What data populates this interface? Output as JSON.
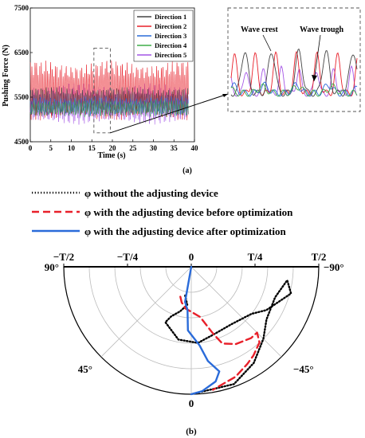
{
  "chart_data": [
    {
      "panel": "(a)",
      "type": "line",
      "xlabel": "Time (s)",
      "ylabel": "Pushing Force (N)",
      "xlim": [
        0,
        40
      ],
      "ylim": [
        4500,
        7500
      ],
      "xticks": [
        0,
        5,
        10,
        15,
        20,
        25,
        30,
        35,
        40
      ],
      "yticks": [
        4500,
        5500,
        6500,
        7500
      ],
      "data_end_time": 38.5,
      "legend_position": "top-right",
      "series": [
        {
          "name": "Direction 1",
          "color": "#444444",
          "mean": 5400,
          "amplitude": 300
        },
        {
          "name": "Direction 2",
          "color": "#e8202a",
          "mean": 5650,
          "amplitude": 620
        },
        {
          "name": "Direction 3",
          "color": "#2a6bd9",
          "mean": 5300,
          "amplitude": 200
        },
        {
          "name": "Direction 4",
          "color": "#3fae49",
          "mean": 5250,
          "amplitude": 180
        },
        {
          "name": "Direction 5",
          "color": "#a455e6",
          "mean": 5350,
          "amplitude": 420
        }
      ],
      "zoom_window": {
        "x_range": [
          15.5,
          19.5
        ],
        "y_range": [
          4700,
          6600
        ]
      },
      "inset": {
        "annotations": [
          "Wave crest",
          "Wave trough"
        ]
      }
    },
    {
      "panel": "(b)",
      "type": "line",
      "projection": "polar-half",
      "angle_ticks_top": [
        "−T/2",
        "−T/4",
        "0",
        "T/4",
        "T/2"
      ],
      "angle_ticks_degrees": [
        "90°",
        "45°",
        "−45°",
        "−90°"
      ],
      "bottom_label": "0",
      "rings": 5,
      "legend_position": "top",
      "series": [
        {
          "name": "φ without the adjusting device",
          "color": "#000000",
          "style": "dotted",
          "points": [
            [
              -12,
              0.23
            ],
            [
              -6,
              0.3
            ],
            [
              -14,
              0.36
            ],
            [
              -22,
              0.42
            ],
            [
              -25,
              0.48
            ],
            [
              -10,
              0.58
            ],
            [
              5,
              0.6
            ],
            [
              18,
              0.56
            ],
            [
              35,
              0.55
            ],
            [
              52,
              0.6
            ],
            [
              60,
              0.68
            ],
            [
              75,
              0.81
            ],
            [
              82,
              0.76
            ],
            [
              70,
              0.7
            ],
            [
              55,
              0.72
            ],
            [
              45,
              0.8
            ],
            [
              33,
              0.9
            ],
            [
              20,
              0.98
            ],
            [
              0,
              1.0
            ]
          ]
        },
        {
          "name": "φ with the adjusting device before optimization",
          "color": "#e8202a",
          "style": "dashed",
          "points": [
            [
              -20,
              0.25
            ],
            [
              -15,
              0.29
            ],
            [
              -8,
              0.33
            ],
            [
              10,
              0.4
            ],
            [
              18,
              0.55
            ],
            [
              22,
              0.65
            ],
            [
              30,
              0.7
            ],
            [
              40,
              0.73
            ],
            [
              45,
              0.73
            ],
            [
              42,
              0.8
            ],
            [
              35,
              0.85
            ],
            [
              30,
              0.88
            ],
            [
              22,
              0.93
            ],
            [
              10,
              0.98
            ]
          ]
        },
        {
          "name": "φ with the adjusting device after optimization",
          "color": "#2a6bd9",
          "style": "solid",
          "points": [
            [
              0,
              0.0
            ],
            [
              -10,
              0.28
            ],
            [
              -5,
              0.34
            ],
            [
              -3,
              0.5
            ],
            [
              6,
              0.62
            ],
            [
              10,
              0.75
            ],
            [
              15,
              0.85
            ],
            [
              12,
              0.92
            ],
            [
              5,
              0.98
            ],
            [
              0,
              1.0
            ]
          ]
        }
      ]
    }
  ],
  "labels": {
    "panel_a": "(a)",
    "panel_b": "(b)"
  }
}
